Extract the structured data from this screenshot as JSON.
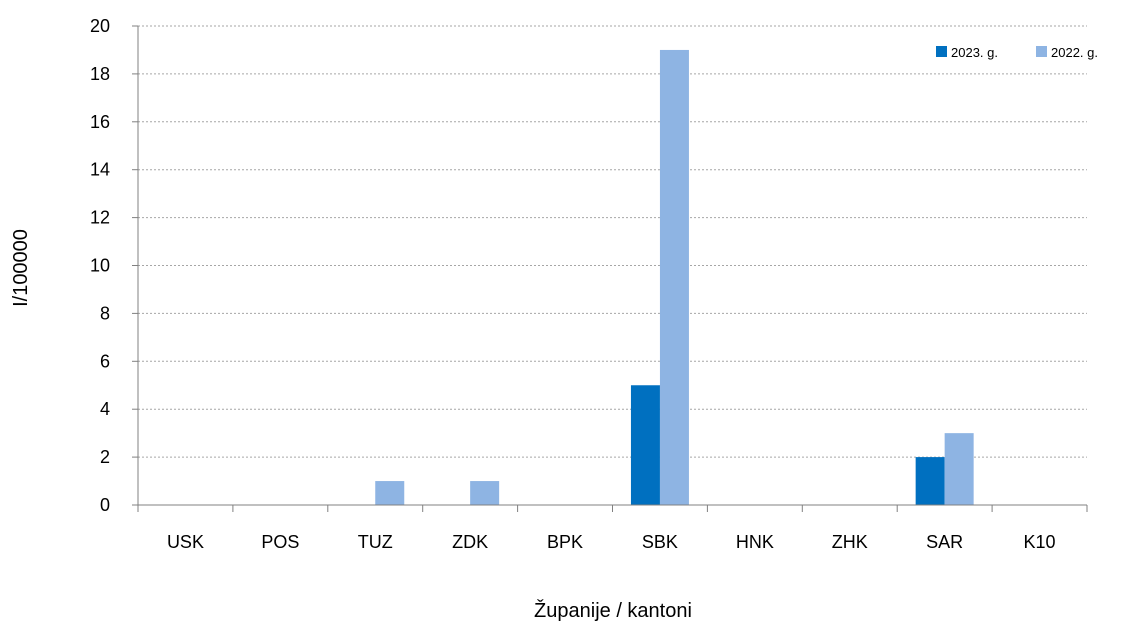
{
  "chart_data": {
    "type": "bar",
    "title": "",
    "xlabel": "Županije / kantoni",
    "ylabel": "I/100000",
    "categories": [
      "USK",
      "POS",
      "TUZ",
      "ZDK",
      "BPK",
      "SBK",
      "HNK",
      "ZHK",
      "SAR",
      "K10"
    ],
    "series": [
      {
        "name": "2023. g.",
        "values": [
          0,
          0,
          0,
          0,
          0,
          5,
          0,
          0,
          2,
          0
        ],
        "color": "#0070C0"
      },
      {
        "name": "2022. g.",
        "values": [
          0,
          0,
          1,
          1,
          0,
          19,
          0,
          0,
          3,
          0
        ],
        "color": "#8EB4E3"
      }
    ],
    "ylim": [
      0,
      20
    ],
    "yticks": [
      0,
      2,
      4,
      6,
      8,
      10,
      12,
      14,
      16,
      18,
      20
    ],
    "grid": true,
    "legend_position": "top-right"
  }
}
